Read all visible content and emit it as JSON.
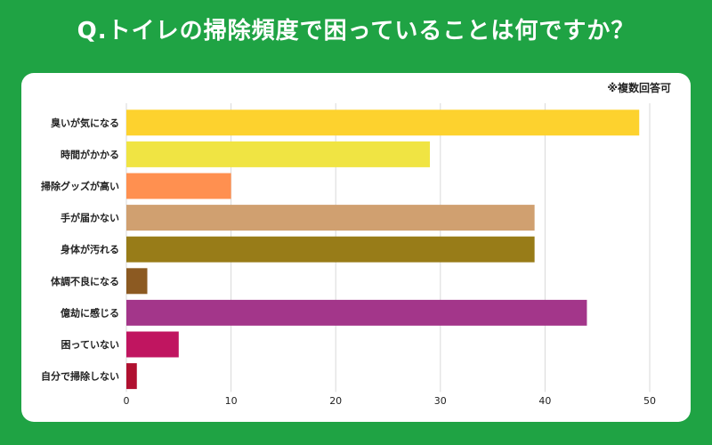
{
  "title": "Q.トイレの掃除頻度で困っていることは何ですか？",
  "note": "※複数回答可",
  "chart_data": {
    "type": "bar",
    "orientation": "horizontal",
    "title": "Q.トイレの掃除頻度で困っていることは何ですか？",
    "categories": [
      "臭いが気になる",
      "時間がかかる",
      "掃除グッズが高い",
      "手が届かない",
      "身体が汚れる",
      "体調不良になる",
      "億劫に感じる",
      "困っていない",
      "自分で掃除しない"
    ],
    "values": [
      49,
      29,
      10,
      39,
      39,
      2,
      44,
      5,
      1
    ],
    "colors": [
      "#fdd22e",
      "#f0e443",
      "#ff9050",
      "#d0a070",
      "#987c18",
      "#8c5a22",
      "#a3368a",
      "#c01560",
      "#b01030"
    ],
    "xlim": [
      0,
      50
    ],
    "xticks": [
      0,
      10,
      20,
      30,
      40,
      50
    ],
    "xlabel": "",
    "ylabel": "",
    "grid": true
  }
}
